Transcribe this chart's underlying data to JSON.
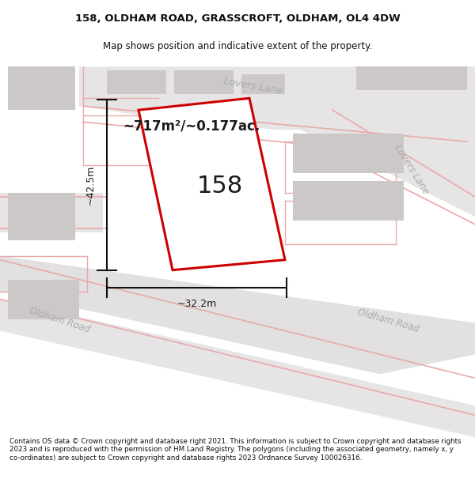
{
  "title_line1": "158, OLDHAM ROAD, GRASSCROFT, OLDHAM, OL4 4DW",
  "title_line2": "Map shows position and indicative extent of the property.",
  "footer_text": "Contains OS data © Crown copyright and database right 2021. This information is subject to Crown copyright and database rights 2023 and is reproduced with the permission of HM Land Registry. The polygons (including the associated geometry, namely x, y co-ordinates) are subject to Crown copyright and database rights 2023 Ordnance Survey 100026316.",
  "area_label": "~717m²/~0.177ac.",
  "width_label": "~32.2m",
  "height_label": "~42.5m",
  "plot_number": "158",
  "map_bg": "#eeecec",
  "road_color_pink": "#e8aaaa",
  "building_gray": "#ccc8c8",
  "building_light": "#d8d4d4",
  "plot_outline_color": "#cc0000",
  "dimension_line_color": "#111111",
  "street_label_color": "#aaaaaa",
  "title_color": "#111111",
  "footer_color": "#111111",
  "white": "#ffffff"
}
